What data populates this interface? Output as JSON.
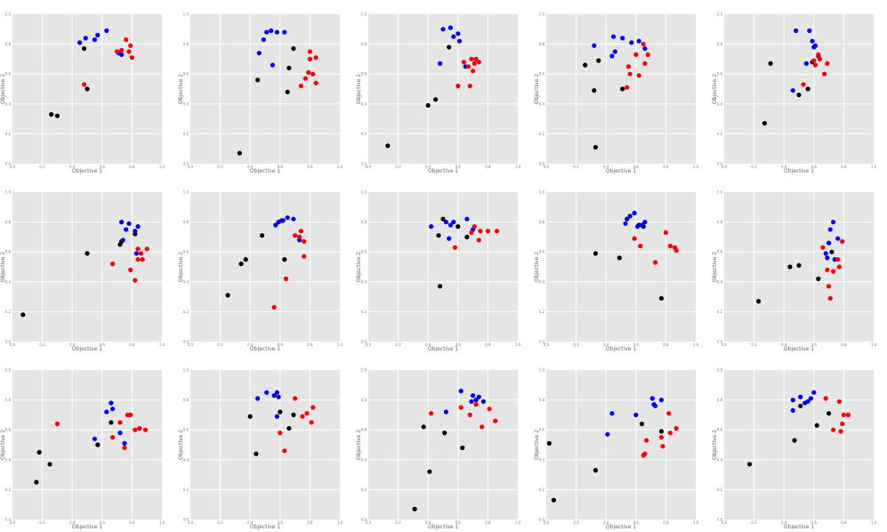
{
  "chart_data": {
    "type": "scatter",
    "grid": true,
    "xlim": [
      0,
      1
    ],
    "ylim": [
      0,
      1
    ],
    "xlabel": "Objective 1",
    "ylabel": "Objective 2",
    "xticks": [
      "0.0",
      "0.2",
      "0.4",
      "0.6",
      "0.8",
      "1.0"
    ],
    "yticks": [
      "0.0",
      "0.2",
      "0.4",
      "0.6",
      "0.8",
      "1.0"
    ],
    "colors": {
      "black": "#000000",
      "blue": "#0000ff",
      "red": "#ff0000",
      "bg": "#e5e5e5",
      "gridline": "#ffffff"
    },
    "panels": [
      {
        "black": [
          [
            0.26,
            0.33
          ],
          [
            0.3,
            0.32
          ],
          [
            0.48,
            0.77
          ],
          [
            0.5,
            0.5
          ]
        ],
        "blue": [
          [
            0.45,
            0.81
          ],
          [
            0.49,
            0.84
          ],
          [
            0.55,
            0.83
          ],
          [
            0.57,
            0.86
          ],
          [
            0.63,
            0.89
          ],
          [
            0.71,
            0.74
          ],
          [
            0.73,
            0.73
          ]
        ],
        "red": [
          [
            0.48,
            0.53
          ],
          [
            0.7,
            0.75
          ],
          [
            0.73,
            0.76
          ],
          [
            0.76,
            0.83
          ],
          [
            0.78,
            0.75
          ],
          [
            0.79,
            0.79
          ],
          [
            0.8,
            0.71
          ]
        ]
      },
      {
        "black": [
          [
            0.33,
            0.07
          ],
          [
            0.45,
            0.56
          ],
          [
            0.66,
            0.64
          ],
          [
            0.65,
            0.48
          ],
          [
            0.69,
            0.77
          ]
        ],
        "blue": [
          [
            0.46,
            0.74
          ],
          [
            0.49,
            0.83
          ],
          [
            0.51,
            0.88
          ],
          [
            0.54,
            0.89
          ],
          [
            0.58,
            0.88
          ],
          [
            0.63,
            0.88
          ],
          [
            0.55,
            0.66
          ]
        ],
        "red": [
          [
            0.74,
            0.52
          ],
          [
            0.77,
            0.57
          ],
          [
            0.79,
            0.61
          ],
          [
            0.8,
            0.75
          ],
          [
            0.8,
            0.7
          ],
          [
            0.84,
            0.71
          ],
          [
            0.82,
            0.6
          ],
          [
            0.84,
            0.54
          ]
        ]
      },
      {
        "black": [
          [
            0.13,
            0.12
          ],
          [
            0.4,
            0.39
          ],
          [
            0.45,
            0.43
          ],
          [
            0.54,
            0.78
          ]
        ],
        "blue": [
          [
            0.5,
            0.9
          ],
          [
            0.55,
            0.91
          ],
          [
            0.57,
            0.85
          ],
          [
            0.6,
            0.87
          ],
          [
            0.61,
            0.82
          ],
          [
            0.48,
            0.67
          ],
          [
            0.65,
            0.65
          ]
        ],
        "red": [
          [
            0.6,
            0.52
          ],
          [
            0.68,
            0.52
          ],
          [
            0.64,
            0.68
          ],
          [
            0.67,
            0.65
          ],
          [
            0.69,
            0.7
          ],
          [
            0.7,
            0.62
          ],
          [
            0.71,
            0.67
          ],
          [
            0.74,
            0.68
          ],
          [
            0.72,
            0.7
          ]
        ]
      },
      {
        "black": [
          [
            0.26,
            0.66
          ],
          [
            0.32,
            0.49
          ],
          [
            0.35,
            0.69
          ],
          [
            0.33,
            0.11
          ],
          [
            0.51,
            0.5
          ]
        ],
        "blue": [
          [
            0.32,
            0.79
          ],
          [
            0.44,
            0.72
          ],
          [
            0.46,
            0.75
          ],
          [
            0.45,
            0.85
          ],
          [
            0.51,
            0.84
          ],
          [
            0.57,
            0.81
          ],
          [
            0.62,
            0.82
          ],
          [
            0.66,
            0.77
          ]
        ],
        "red": [
          [
            0.54,
            0.51
          ],
          [
            0.55,
            0.65
          ],
          [
            0.56,
            0.6
          ],
          [
            0.6,
            0.73
          ],
          [
            0.62,
            0.59
          ],
          [
            0.65,
            0.8
          ],
          [
            0.66,
            0.67
          ],
          [
            0.68,
            0.73
          ]
        ]
      },
      {
        "black": [
          [
            0.27,
            0.27
          ],
          [
            0.31,
            0.67
          ],
          [
            0.5,
            0.46
          ],
          [
            0.56,
            0.5
          ],
          [
            0.59,
            0.68
          ]
        ],
        "blue": [
          [
            0.46,
            0.49
          ],
          [
            0.48,
            0.89
          ],
          [
            0.57,
            0.89
          ],
          [
            0.59,
            0.82
          ],
          [
            0.6,
            0.78
          ],
          [
            0.61,
            0.79
          ],
          [
            0.63,
            0.72
          ],
          [
            0.55,
            0.67
          ]
        ],
        "red": [
          [
            0.53,
            0.53
          ],
          [
            0.6,
            0.69
          ],
          [
            0.61,
            0.66
          ],
          [
            0.63,
            0.73
          ],
          [
            0.64,
            0.7
          ],
          [
            0.67,
            0.6
          ],
          [
            0.69,
            0.67
          ]
        ]
      },
      {
        "black": [
          [
            0.07,
            0.18
          ],
          [
            0.5,
            0.59
          ],
          [
            0.72,
            0.65
          ],
          [
            0.73,
            0.67
          ],
          [
            0.82,
            0.72
          ]
        ],
        "blue": [
          [
            0.73,
            0.8
          ],
          [
            0.74,
            0.68
          ],
          [
            0.76,
            0.75
          ],
          [
            0.78,
            0.79
          ],
          [
            0.82,
            0.74
          ],
          [
            0.84,
            0.77
          ],
          [
            0.83,
            0.59
          ]
        ],
        "red": [
          [
            0.67,
            0.52
          ],
          [
            0.79,
            0.48
          ],
          [
            0.82,
            0.41
          ],
          [
            0.84,
            0.55
          ],
          [
            0.84,
            0.62
          ],
          [
            0.86,
            0.59
          ],
          [
            0.87,
            0.55
          ],
          [
            0.9,
            0.62
          ]
        ]
      },
      {
        "black": [
          [
            0.25,
            0.31
          ],
          [
            0.34,
            0.52
          ],
          [
            0.37,
            0.55
          ],
          [
            0.48,
            0.71
          ],
          [
            0.63,
            0.55
          ]
        ],
        "blue": [
          [
            0.57,
            0.78
          ],
          [
            0.59,
            0.8
          ],
          [
            0.61,
            0.81
          ],
          [
            0.62,
            0.81
          ],
          [
            0.65,
            0.83
          ],
          [
            0.69,
            0.82
          ],
          [
            0.73,
            0.68
          ]
        ],
        "red": [
          [
            0.56,
            0.23
          ],
          [
            0.64,
            0.42
          ],
          [
            0.7,
            0.71
          ],
          [
            0.73,
            0.7
          ],
          [
            0.74,
            0.74
          ],
          [
            0.76,
            0.67
          ],
          [
            0.76,
            0.57
          ]
        ]
      },
      {
        "black": [
          [
            0.48,
            0.37
          ],
          [
            0.47,
            0.71
          ],
          [
            0.5,
            0.82
          ],
          [
            0.6,
            0.77
          ],
          [
            0.66,
            0.7
          ]
        ],
        "blue": [
          [
            0.42,
            0.77
          ],
          [
            0.52,
            0.8
          ],
          [
            0.55,
            0.78
          ],
          [
            0.57,
            0.8
          ],
          [
            0.54,
            0.69
          ],
          [
            0.66,
            0.82
          ],
          [
            0.7,
            0.75
          ]
        ],
        "red": [
          [
            0.58,
            0.63
          ],
          [
            0.69,
            0.73
          ],
          [
            0.71,
            0.77
          ],
          [
            0.74,
            0.68
          ],
          [
            0.75,
            0.74
          ],
          [
            0.8,
            0.74
          ],
          [
            0.86,
            0.74
          ]
        ]
      },
      {
        "black": [
          [
            0.33,
            0.59
          ],
          [
            0.49,
            0.56
          ],
          [
            0.62,
            0.78
          ],
          [
            0.65,
            0.77
          ],
          [
            0.77,
            0.29
          ]
        ],
        "blue": [
          [
            0.53,
            0.79
          ],
          [
            0.54,
            0.82
          ],
          [
            0.56,
            0.84
          ],
          [
            0.59,
            0.86
          ],
          [
            0.61,
            0.77
          ],
          [
            0.64,
            0.78
          ],
          [
            0.66,
            0.8
          ]
        ],
        "red": [
          [
            0.59,
            0.69
          ],
          [
            0.63,
            0.64
          ],
          [
            0.73,
            0.53
          ],
          [
            0.8,
            0.73
          ],
          [
            0.83,
            0.64
          ],
          [
            0.86,
            0.63
          ],
          [
            0.87,
            0.61
          ]
        ]
      },
      {
        "black": [
          [
            0.23,
            0.27
          ],
          [
            0.44,
            0.5
          ],
          [
            0.5,
            0.51
          ],
          [
            0.63,
            0.42
          ],
          [
            0.72,
            0.6
          ]
        ],
        "blue": [
          [
            0.68,
            0.59
          ],
          [
            0.7,
            0.66
          ],
          [
            0.71,
            0.75
          ],
          [
            0.73,
            0.8
          ],
          [
            0.74,
            0.55
          ],
          [
            0.76,
            0.69
          ],
          [
            0.69,
            0.56
          ]
        ],
        "red": [
          [
            0.66,
            0.63
          ],
          [
            0.69,
            0.48
          ],
          [
            0.7,
            0.37
          ],
          [
            0.71,
            0.29
          ],
          [
            0.73,
            0.47
          ],
          [
            0.76,
            0.55
          ],
          [
            0.77,
            0.5
          ],
          [
            0.79,
            0.67
          ]
        ]
      },
      {
        "black": [
          [
            0.16,
            0.25
          ],
          [
            0.18,
            0.45
          ],
          [
            0.25,
            0.37
          ],
          [
            0.57,
            0.5
          ],
          [
            0.66,
            0.65
          ]
        ],
        "blue": [
          [
            0.55,
            0.54
          ],
          [
            0.63,
            0.72
          ],
          [
            0.66,
            0.78
          ],
          [
            0.67,
            0.74
          ],
          [
            0.72,
            0.58
          ],
          [
            0.75,
            0.51
          ]
        ],
        "red": [
          [
            0.3,
            0.64
          ],
          [
            0.67,
            0.55
          ],
          [
            0.72,
            0.65
          ],
          [
            0.75,
            0.48
          ],
          [
            0.77,
            0.7
          ],
          [
            0.79,
            0.7
          ],
          [
            0.82,
            0.6
          ],
          [
            0.85,
            0.61
          ],
          [
            0.89,
            0.6
          ]
        ]
      },
      {
        "black": [
          [
            0.44,
            0.44
          ],
          [
            0.4,
            0.69
          ],
          [
            0.6,
            0.72
          ],
          [
            0.66,
            0.61
          ],
          [
            0.69,
            0.7
          ]
        ],
        "blue": [
          [
            0.45,
            0.81
          ],
          [
            0.51,
            0.85
          ],
          [
            0.56,
            0.83
          ],
          [
            0.58,
            0.85
          ],
          [
            0.59,
            0.82
          ],
          [
            0.58,
            0.69
          ]
        ],
        "red": [
          [
            0.6,
            0.58
          ],
          [
            0.63,
            0.46
          ],
          [
            0.7,
            0.81
          ],
          [
            0.75,
            0.69
          ],
          [
            0.78,
            0.71
          ],
          [
            0.81,
            0.65
          ],
          [
            0.82,
            0.75
          ]
        ]
      },
      {
        "black": [
          [
            0.31,
            0.07
          ],
          [
            0.37,
            0.62
          ],
          [
            0.41,
            0.32
          ],
          [
            0.51,
            0.58
          ],
          [
            0.63,
            0.48
          ]
        ],
        "blue": [
          [
            0.52,
            0.72
          ],
          [
            0.62,
            0.86
          ],
          [
            0.69,
            0.79
          ],
          [
            0.7,
            0.83
          ],
          [
            0.72,
            0.8
          ],
          [
            0.74,
            0.82
          ],
          [
            0.77,
            0.79
          ]
        ],
        "red": [
          [
            0.42,
            0.71
          ],
          [
            0.62,
            0.75
          ],
          [
            0.68,
            0.7
          ],
          [
            0.72,
            0.77
          ],
          [
            0.76,
            0.62
          ],
          [
            0.81,
            0.74
          ],
          [
            0.85,
            0.66
          ]
        ]
      },
      {
        "black": [
          [
            0.02,
            0.51
          ],
          [
            0.05,
            0.13
          ],
          [
            0.33,
            0.33
          ],
          [
            0.64,
            0.64
          ],
          [
            0.77,
            0.59
          ]
        ],
        "blue": [
          [
            0.41,
            0.57
          ],
          [
            0.44,
            0.71
          ],
          [
            0.6,
            0.7
          ],
          [
            0.71,
            0.81
          ],
          [
            0.72,
            0.77
          ],
          [
            0.73,
            0.76
          ],
          [
            0.77,
            0.8
          ]
        ],
        "red": [
          [
            0.65,
            0.43
          ],
          [
            0.66,
            0.44
          ],
          [
            0.67,
            0.53
          ],
          [
            0.77,
            0.55
          ],
          [
            0.78,
            0.49
          ],
          [
            0.82,
            0.71
          ],
          [
            0.83,
            0.58
          ],
          [
            0.87,
            0.61
          ]
        ]
      },
      {
        "black": [
          [
            0.17,
            0.37
          ],
          [
            0.47,
            0.53
          ],
          [
            0.51,
            0.76
          ],
          [
            0.62,
            0.63
          ],
          [
            0.7,
            0.71
          ]
        ],
        "blue": [
          [
            0.46,
            0.73
          ],
          [
            0.46,
            0.8
          ],
          [
            0.51,
            0.82
          ],
          [
            0.54,
            0.78
          ],
          [
            0.56,
            0.79
          ],
          [
            0.58,
            0.81
          ],
          [
            0.6,
            0.85
          ]
        ],
        "red": [
          [
            0.68,
            0.81
          ],
          [
            0.73,
            0.6
          ],
          [
            0.77,
            0.79
          ],
          [
            0.78,
            0.59
          ],
          [
            0.79,
            0.64
          ],
          [
            0.8,
            0.7
          ],
          [
            0.83,
            0.7
          ]
        ]
      }
    ]
  }
}
